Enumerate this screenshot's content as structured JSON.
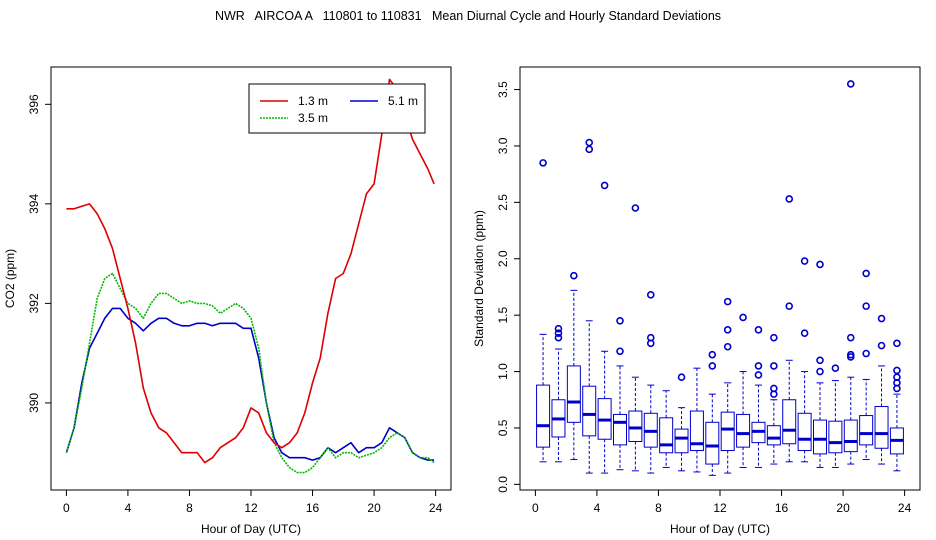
{
  "page": {
    "title": "NWR   AIRCOA A   110801 to 110831   Mean Diurnal Cycle and Hourly Standard Deviations"
  },
  "chart_data": [
    {
      "type": "line",
      "xlabel": "Hour of Day (UTC)",
      "ylabel": "CO2 (ppm)",
      "xlim": [
        -1,
        25
      ],
      "ylim": [
        388.25,
        396.75
      ],
      "xticks": [
        0,
        4,
        8,
        12,
        16,
        20,
        24
      ],
      "yticks": [
        390,
        392,
        394,
        396
      ],
      "grid": false,
      "legend_position": "top-right",
      "x": [
        0,
        0.5,
        1,
        1.5,
        2,
        2.5,
        3,
        3.5,
        4,
        4.5,
        5,
        5.5,
        6,
        6.5,
        7,
        7.5,
        8,
        8.5,
        9,
        9.5,
        10,
        10.5,
        11,
        11.5,
        12,
        12.5,
        13,
        13.5,
        14,
        14.5,
        15,
        15.5,
        16,
        16.5,
        17,
        17.5,
        18,
        18.5,
        19,
        19.5,
        20,
        20.5,
        21,
        21.5,
        22,
        22.5,
        23,
        23.5,
        23.9
      ],
      "series": [
        {
          "name": "1.3 m",
          "color": "#dd0000",
          "values": [
            393.9,
            393.9,
            393.95,
            394.0,
            393.8,
            393.5,
            393.1,
            392.5,
            391.9,
            391.2,
            390.3,
            389.8,
            389.5,
            389.4,
            389.2,
            389.0,
            389.0,
            389.0,
            388.8,
            388.9,
            389.1,
            389.2,
            389.3,
            389.5,
            389.9,
            389.8,
            389.4,
            389.2,
            389.1,
            389.2,
            389.4,
            389.8,
            390.4,
            390.9,
            391.8,
            392.5,
            392.6,
            393.0,
            393.6,
            394.2,
            394.4,
            395.4,
            396.5,
            396.3,
            395.8,
            395.3,
            395.0,
            394.7,
            394.4
          ]
        },
        {
          "name": "3.5 m",
          "color": "#00bb00",
          "values": [
            389.0,
            389.5,
            390.3,
            391.2,
            392.1,
            392.5,
            392.6,
            392.3,
            392.0,
            391.9,
            391.7,
            392.0,
            392.2,
            392.2,
            392.1,
            392.0,
            392.05,
            392.0,
            392.0,
            391.95,
            391.8,
            391.9,
            392.0,
            391.9,
            391.7,
            391.1,
            390.0,
            389.2,
            388.9,
            388.7,
            388.6,
            388.6,
            388.7,
            388.9,
            389.1,
            388.9,
            389.0,
            389.0,
            388.9,
            388.95,
            389.0,
            389.1,
            389.3,
            389.4,
            389.3,
            389.0,
            388.9,
            388.9,
            388.8
          ]
        },
        {
          "name": "5.1 m",
          "color": "#0000cc",
          "values": [
            389.0,
            389.5,
            390.4,
            391.1,
            391.4,
            391.7,
            391.9,
            391.9,
            391.7,
            391.6,
            391.45,
            391.6,
            391.7,
            391.7,
            391.6,
            391.55,
            391.55,
            391.6,
            391.6,
            391.55,
            391.6,
            391.6,
            391.6,
            391.5,
            391.5,
            390.9,
            390.0,
            389.3,
            389.0,
            388.9,
            388.9,
            388.9,
            388.85,
            388.9,
            389.1,
            389.0,
            389.1,
            389.2,
            389.0,
            389.1,
            389.1,
            389.2,
            389.5,
            389.4,
            389.3,
            389.0,
            388.9,
            388.85,
            388.85
          ]
        }
      ]
    },
    {
      "type": "box",
      "xlabel": "Hour of Day (UTC)",
      "ylabel": "Standard Deviation (ppm)",
      "xlim": [
        -1,
        25
      ],
      "ylim": [
        -0.05,
        3.7
      ],
      "xticks": [
        0,
        4,
        8,
        12,
        16,
        20,
        24
      ],
      "yticks": [
        0.0,
        0.5,
        1.0,
        1.5,
        2.0,
        2.5,
        3.0,
        3.5
      ],
      "grid": false,
      "box_color": "#0000cc",
      "boxes": [
        {
          "hour": 0.5,
          "min": 0.2,
          "q1": 0.33,
          "median": 0.52,
          "q3": 0.88,
          "max": 1.33,
          "outliers": [
            2.85
          ]
        },
        {
          "hour": 1.5,
          "min": 0.2,
          "q1": 0.42,
          "median": 0.58,
          "q3": 0.75,
          "max": 1.2,
          "outliers": [
            1.3,
            1.34,
            1.38
          ]
        },
        {
          "hour": 2.5,
          "min": 0.22,
          "q1": 0.55,
          "median": 0.73,
          "q3": 1.05,
          "max": 1.72,
          "outliers": [
            1.85
          ]
        },
        {
          "hour": 3.5,
          "min": 0.1,
          "q1": 0.43,
          "median": 0.62,
          "q3": 0.87,
          "max": 1.45,
          "outliers": [
            2.97,
            3.03
          ]
        },
        {
          "hour": 4.5,
          "min": 0.1,
          "q1": 0.4,
          "median": 0.57,
          "q3": 0.76,
          "max": 1.18,
          "outliers": [
            2.65
          ]
        },
        {
          "hour": 5.5,
          "min": 0.13,
          "q1": 0.35,
          "median": 0.55,
          "q3": 0.62,
          "max": 1.05,
          "outliers": [
            1.18,
            1.45
          ]
        },
        {
          "hour": 6.5,
          "min": 0.12,
          "q1": 0.38,
          "median": 0.5,
          "q3": 0.65,
          "max": 0.95,
          "outliers": [
            2.45
          ]
        },
        {
          "hour": 7.5,
          "min": 0.1,
          "q1": 0.33,
          "median": 0.47,
          "q3": 0.63,
          "max": 0.88,
          "outliers": [
            1.25,
            1.3,
            1.68
          ]
        },
        {
          "hour": 8.5,
          "min": 0.15,
          "q1": 0.28,
          "median": 0.35,
          "q3": 0.59,
          "max": 0.83,
          "outliers": []
        },
        {
          "hour": 9.5,
          "min": 0.12,
          "q1": 0.28,
          "median": 0.41,
          "q3": 0.49,
          "max": 0.68,
          "outliers": [
            0.95
          ]
        },
        {
          "hour": 10.5,
          "min": 0.11,
          "q1": 0.3,
          "median": 0.36,
          "q3": 0.65,
          "max": 1.03,
          "outliers": []
        },
        {
          "hour": 11.5,
          "min": 0.08,
          "q1": 0.18,
          "median": 0.34,
          "q3": 0.55,
          "max": 0.8,
          "outliers": [
            1.05,
            1.15
          ]
        },
        {
          "hour": 12.5,
          "min": 0.1,
          "q1": 0.3,
          "median": 0.49,
          "q3": 0.64,
          "max": 0.9,
          "outliers": [
            1.22,
            1.37,
            1.62
          ]
        },
        {
          "hour": 13.5,
          "min": 0.15,
          "q1": 0.33,
          "median": 0.45,
          "q3": 0.62,
          "max": 1.0,
          "outliers": [
            1.48
          ]
        },
        {
          "hour": 14.5,
          "min": 0.15,
          "q1": 0.37,
          "median": 0.47,
          "q3": 0.55,
          "max": 0.88,
          "outliers": [
            0.97,
            1.05,
            1.37
          ]
        },
        {
          "hour": 15.5,
          "min": 0.18,
          "q1": 0.35,
          "median": 0.41,
          "q3": 0.52,
          "max": 0.75,
          "outliers": [
            0.8,
            0.85,
            1.05,
            1.3
          ]
        },
        {
          "hour": 16.5,
          "min": 0.2,
          "q1": 0.36,
          "median": 0.48,
          "q3": 0.75,
          "max": 1.1,
          "outliers": [
            1.58,
            2.53
          ]
        },
        {
          "hour": 17.5,
          "min": 0.2,
          "q1": 0.3,
          "median": 0.4,
          "q3": 0.63,
          "max": 1.0,
          "outliers": [
            1.34,
            1.98
          ]
        },
        {
          "hour": 18.5,
          "min": 0.15,
          "q1": 0.27,
          "median": 0.4,
          "q3": 0.57,
          "max": 0.9,
          "outliers": [
            1.0,
            1.1,
            1.95
          ]
        },
        {
          "hour": 19.5,
          "min": 0.15,
          "q1": 0.28,
          "median": 0.37,
          "q3": 0.56,
          "max": 0.92,
          "outliers": [
            1.03
          ]
        },
        {
          "hour": 20.5,
          "min": 0.18,
          "q1": 0.29,
          "median": 0.38,
          "q3": 0.57,
          "max": 0.95,
          "outliers": [
            1.13,
            1.15,
            1.3,
            3.55
          ]
        },
        {
          "hour": 21.5,
          "min": 0.22,
          "q1": 0.35,
          "median": 0.45,
          "q3": 0.61,
          "max": 0.93,
          "outliers": [
            1.16,
            1.58,
            1.87
          ]
        },
        {
          "hour": 22.5,
          "min": 0.18,
          "q1": 0.32,
          "median": 0.45,
          "q3": 0.69,
          "max": 1.05,
          "outliers": [
            1.23,
            1.47
          ]
        },
        {
          "hour": 23.5,
          "min": 0.12,
          "q1": 0.27,
          "median": 0.39,
          "q3": 0.5,
          "max": 0.8,
          "outliers": [
            0.85,
            0.9,
            0.95,
            1.01,
            1.25
          ]
        }
      ]
    }
  ]
}
